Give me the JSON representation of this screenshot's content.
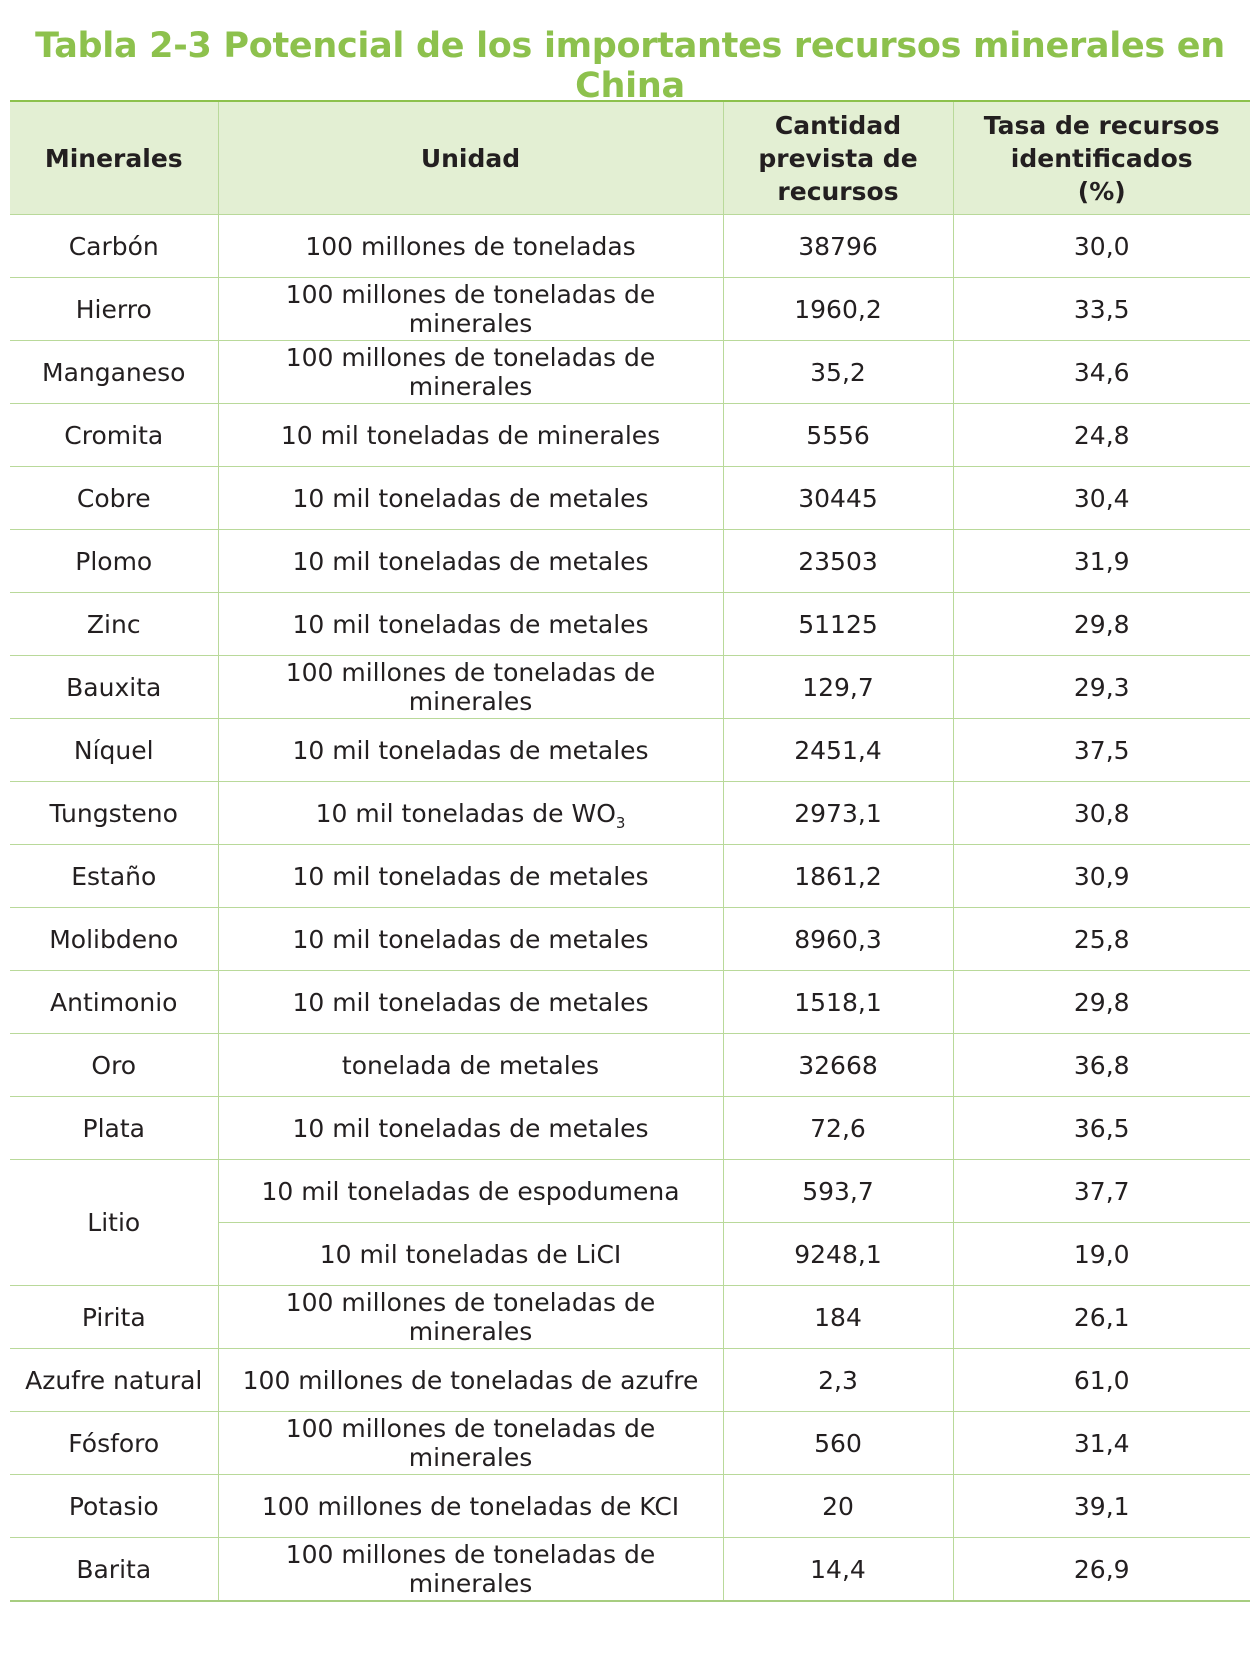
{
  "title": "Tabla 2-3 Potencial de los importantes recursos minerales en China",
  "headers": {
    "mineral": "Minerales",
    "unit": "Unidad",
    "amount": [
      "Cantidad",
      "prevista de",
      "recursos"
    ],
    "rate": [
      "Tasa de recursos",
      "identificados",
      "(%)"
    ]
  },
  "rows": [
    {
      "mineral": "Carbón",
      "unit": "100 millones de toneladas",
      "amount": "38796",
      "rate": "30,0"
    },
    {
      "mineral": "Hierro",
      "unit": "100 millones de toneladas de minerales",
      "amount": "1960,2",
      "rate": "33,5"
    },
    {
      "mineral": "Manganeso",
      "unit": "100 millones de toneladas de minerales",
      "amount": "35,2",
      "rate": "34,6"
    },
    {
      "mineral": "Cromita",
      "unit": "10 mil toneladas de minerales",
      "amount": "5556",
      "rate": "24,8"
    },
    {
      "mineral": "Cobre",
      "unit": "10 mil toneladas de metales",
      "amount": "30445",
      "rate": "30,4"
    },
    {
      "mineral": "Plomo",
      "unit": "10 mil toneladas de metales",
      "amount": "23503",
      "rate": "31,9"
    },
    {
      "mineral": "Zinc",
      "unit": "10 mil toneladas de metales",
      "amount": "51125",
      "rate": "29,8"
    },
    {
      "mineral": "Bauxita",
      "unit": "100 millones de toneladas de minerales",
      "amount": "129,7",
      "rate": "29,3"
    },
    {
      "mineral": "Níquel",
      "unit": "10 mil toneladas de metales",
      "amount": "2451,4",
      "rate": "37,5"
    },
    {
      "mineral": "Tungsteno",
      "unit": "10 mil toneladas de WO",
      "unit_sub": "3",
      "amount": "2973,1",
      "rate": "30,8"
    },
    {
      "mineral": "Estaño",
      "unit": "10 mil toneladas de metales",
      "amount": "1861,2",
      "rate": "30,9"
    },
    {
      "mineral": "Molibdeno",
      "unit": "10 mil toneladas de metales",
      "amount": "8960,3",
      "rate": "25,8"
    },
    {
      "mineral": "Antimonio",
      "unit": "10 mil toneladas de metales",
      "amount": "1518,1",
      "rate": "29,8"
    },
    {
      "mineral": "Oro",
      "unit": "tonelada de metales",
      "amount": "32668",
      "rate": "36,8"
    },
    {
      "mineral": "Plata",
      "unit": "10 mil toneladas de metales",
      "amount": "72,6",
      "rate": "36,5"
    },
    {
      "mineral": "Litio",
      "unit": "10 mil toneladas de espodumena",
      "amount": "593,7",
      "rate": "37,7"
    },
    {
      "mineral": "",
      "unit": "10 mil toneladas de LiCI",
      "amount": "9248,1",
      "rate": "19,0"
    },
    {
      "mineral": "Pirita",
      "unit": "100 millones de toneladas de minerales",
      "amount": "184",
      "rate": "26,1"
    },
    {
      "mineral": "Azufre natural",
      "unit": "100 millones de toneladas de azufre",
      "amount": "2,3",
      "rate": "61,0"
    },
    {
      "mineral": "Fósforo",
      "unit": "100 millones de toneladas de minerales",
      "amount": "560",
      "rate": "31,4"
    },
    {
      "mineral": "Potasio",
      "unit": "100 millones de toneladas de KCI",
      "amount": "20",
      "rate": "39,1"
    },
    {
      "mineral": "Barita",
      "unit": "100 millones de toneladas de minerales",
      "amount": "14,4",
      "rate": "26,9"
    }
  ],
  "colors": {
    "title": "#8dc14d",
    "header_bg": "#e3efd3",
    "rule": "#b9d99a"
  }
}
